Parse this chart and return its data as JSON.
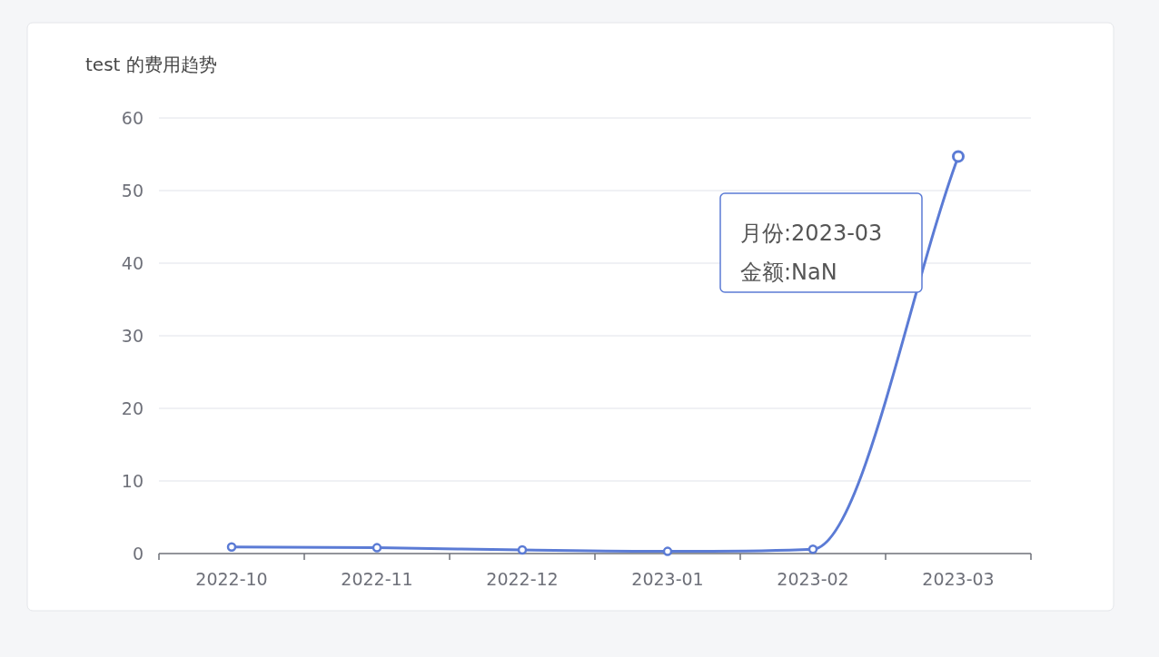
{
  "chart_data": {
    "type": "line",
    "title": "test  的费用趋势",
    "categories": [
      "2022-10",
      "2022-11",
      "2022-12",
      "2023-01",
      "2023-02",
      "2023-03"
    ],
    "values": [
      0.9,
      0.8,
      0.5,
      0.3,
      0.6,
      54.7
    ],
    "color": "#5b7bd5",
    "ylim": [
      0,
      60
    ],
    "yticks": [
      0,
      10,
      20,
      30,
      40,
      50,
      60
    ],
    "grid": "y",
    "marker": "circle",
    "annotations": [
      "月份:2023-03",
      "金额:NaN"
    ]
  }
}
